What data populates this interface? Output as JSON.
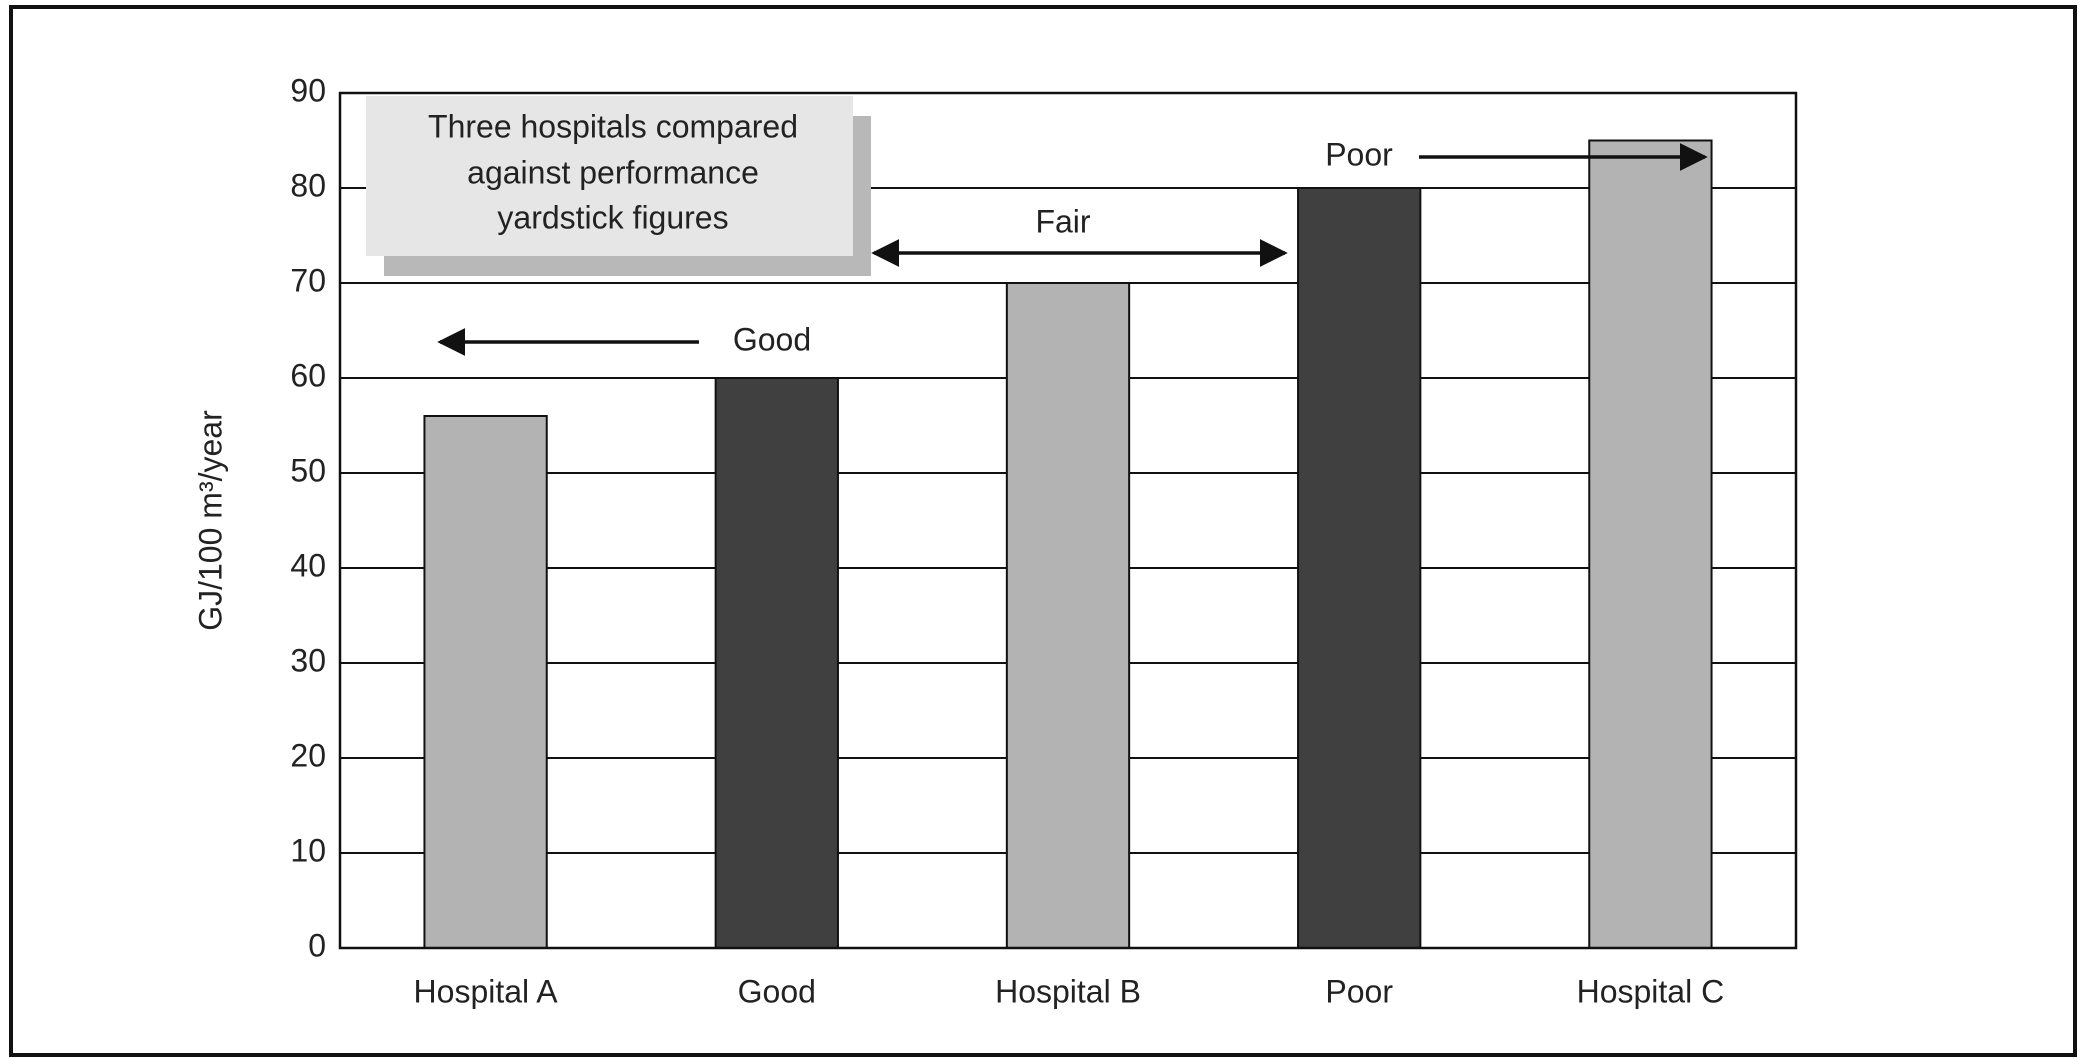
{
  "chart_data": {
    "type": "bar",
    "categories": [
      "Hospital A",
      "Good",
      "Hospital B",
      "Poor",
      "Hospital C"
    ],
    "values": [
      56,
      60,
      70,
      80,
      85
    ],
    "colors": [
      "#b3b3b3",
      "#404040",
      "#b3b3b3",
      "#404040",
      "#b3b3b3"
    ],
    "ylabel": "GJ/100 m³/year",
    "ylim": [
      0,
      90
    ],
    "yticks": [
      0,
      10,
      20,
      30,
      40,
      50,
      60,
      70,
      80,
      90
    ],
    "grid": true,
    "note_lines": [
      "Three hospitals compared",
      "against performance",
      "yardstick figures"
    ],
    "annotations": [
      "Good",
      "Fair",
      "Poor"
    ]
  }
}
